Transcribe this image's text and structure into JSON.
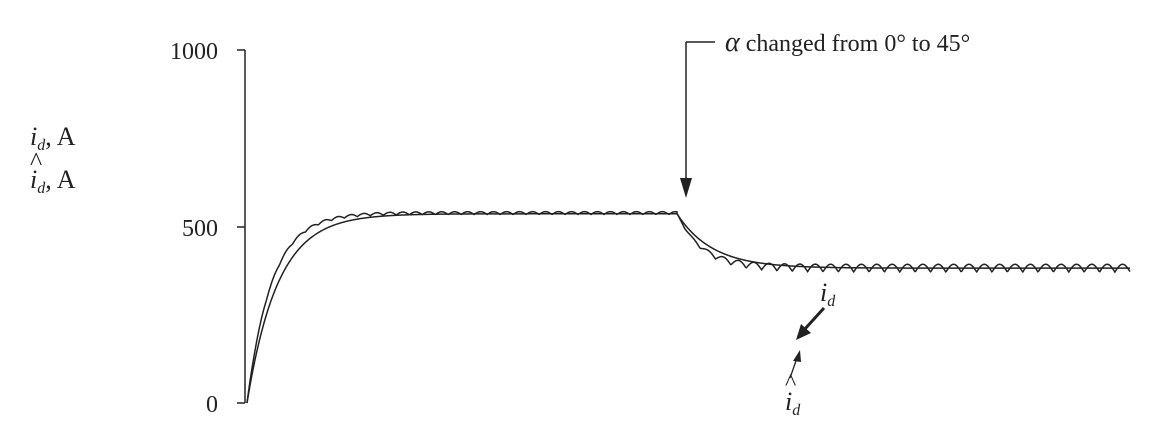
{
  "chart_data": {
    "type": "line",
    "title": "",
    "ylabel_lines": [
      {
        "symbol": "i",
        "hat": false,
        "sub": "d",
        "unit": ", A"
      },
      {
        "symbol": "i",
        "hat": true,
        "sub": "d",
        "unit": ", A"
      }
    ],
    "xlabel": "",
    "ylim": [
      0,
      1000
    ],
    "yticks": [
      0,
      500,
      1000
    ],
    "ytick_labels": [
      "0",
      "500",
      "1000"
    ],
    "x_range": [
      0,
      1
    ],
    "annotations": {
      "event": {
        "symbol": "α",
        "text": " changed from 0° to 45°",
        "x": 0.487
      },
      "label_id": {
        "symbol": "i",
        "sub": "d",
        "hat": false
      },
      "label_id_hat": {
        "symbol": "i",
        "sub": "d",
        "hat": true
      }
    },
    "series": [
      {
        "key": "i_d",
        "description_shown": "i_d (rippled actual current)",
        "segments": [
          {
            "x_start": 0.0,
            "x_end": 0.487,
            "initial": 0,
            "final": 538,
            "tau": 0.028,
            "ripple_amp": 8,
            "ripple_period": 0.0147
          },
          {
            "x_start": 0.487,
            "x_end": 1.0,
            "initial": 538,
            "final": 382,
            "tau": 0.028,
            "ripple_amp": 22,
            "ripple_period": 0.0174
          }
        ]
      },
      {
        "key": "i_d_hat",
        "description_shown": "i_d hat (smooth estimate)",
        "segments": [
          {
            "x_start": 0.0,
            "x_end": 0.487,
            "initial": 0,
            "final": 536,
            "tau": 0.035
          },
          {
            "x_start": 0.487,
            "x_end": 1.0,
            "initial": 536,
            "final": 382,
            "tau": 0.04
          }
        ]
      }
    ]
  }
}
